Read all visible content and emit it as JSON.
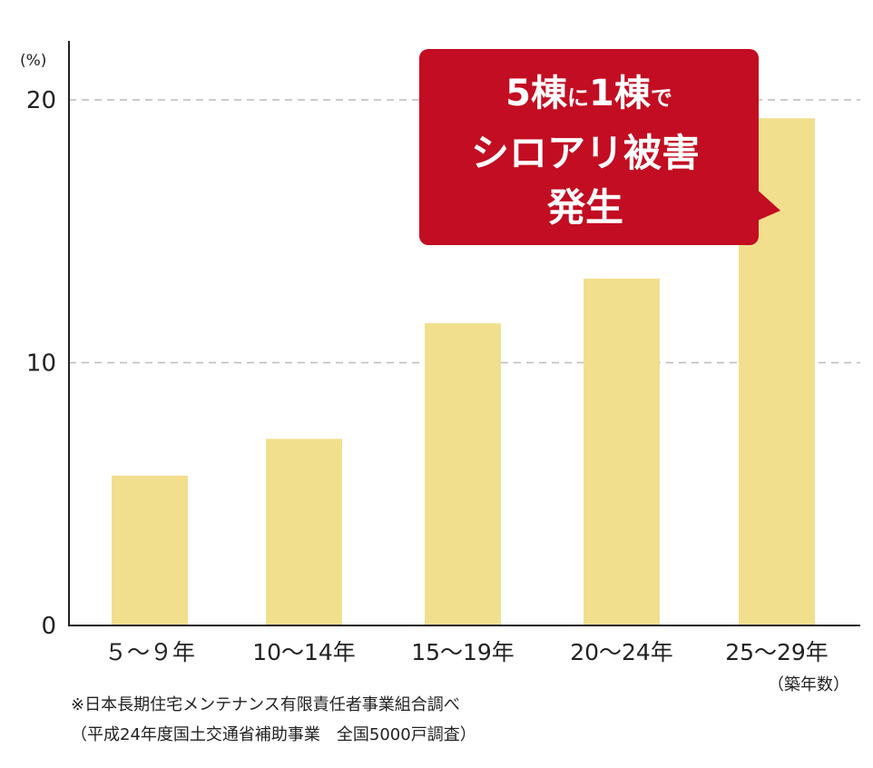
{
  "chart_data": {
    "type": "bar",
    "categories": [
      "５～９年",
      "10～14年",
      "15～19年",
      "20～24年",
      "25～29年"
    ],
    "values": [
      5.7,
      7.1,
      11.5,
      13.2,
      19.3
    ],
    "ylim": [
      0,
      20
    ],
    "yticks": [
      "0",
      "10",
      "20"
    ],
    "ytick_values": [
      0,
      10,
      20
    ],
    "ylabel": "(%)",
    "xlabel": "（築年数）",
    "grid": true,
    "bar_color": "#f2df8e",
    "annotation": {
      "line1_a": "5棟",
      "line1_b": "に",
      "line1_c": "1棟",
      "line1_d": "で",
      "line2": "シロアリ被害",
      "line3": "発生",
      "color": "#c20d22"
    }
  },
  "notes": {
    "source": "※日本長期住宅メンテナンス有限責任者事業組合調べ",
    "detail": "（平成24年度国土交通省補助事業　全国5000戸調査）"
  }
}
